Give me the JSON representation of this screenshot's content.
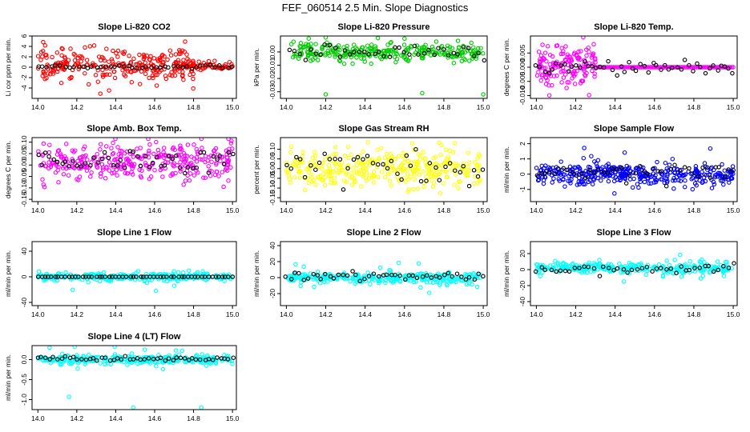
{
  "figure_title": "FEF_060514  2.5 Min. Slope Diagnostics",
  "chart_data": [
    {
      "id": "co2",
      "type": "scatter",
      "title": "Slope Li-820 CO2",
      "ylabel": "Li cor ppm per min.",
      "color": "#ff0000",
      "xlim": [
        13.97,
        15.02
      ],
      "ylim": [
        -6,
        6
      ],
      "xticks": [
        "14.0",
        "14.2",
        "14.4",
        "14.6",
        "14.8",
        "15.0"
      ],
      "yticks": [
        {
          "v": -4,
          "l": "-4"
        },
        {
          "v": -2,
          "l": "-2"
        },
        {
          "v": 0,
          "l": "0"
        },
        {
          "v": 2,
          "l": "2"
        },
        {
          "v": 4,
          "l": "4"
        },
        {
          "v": 6,
          "l": "6"
        }
      ],
      "scatter": {
        "n": 260,
        "x": [
          14.0,
          14.8
        ],
        "center": 0.3,
        "spread": 1.6,
        "tail": 0.9
      },
      "tail_series": {
        "n": 60,
        "x": [
          14.7,
          15.0
        ],
        "center": 0.3,
        "spread": 0.4
      },
      "black": {
        "n": 44,
        "x": [
          14.0,
          15.0
        ],
        "center": 0.1,
        "spread": 0.15
      }
    },
    {
      "id": "pressure",
      "type": "scatter",
      "title": "Slope Li-820 Pressure",
      "ylabel": "kPa per min.",
      "color": "#00cc00",
      "xlim": [
        13.97,
        15.02
      ],
      "ylim": [
        -0.035,
        0.012
      ],
      "xticks": [
        "14.0",
        "14.2",
        "14.4",
        "14.6",
        "14.8",
        "15.0"
      ],
      "yticks": [
        {
          "v": -0.03,
          "l": "-0.03"
        },
        {
          "v": -0.02,
          "l": "-0.02"
        },
        {
          "v": -0.01,
          "l": "-0.01"
        },
        {
          "v": 0,
          "l": "0.00"
        }
      ],
      "scatter": {
        "n": 280,
        "x": [
          14.02,
          15.0
        ],
        "center": 0.0,
        "spread": 0.0035,
        "tail": 0.006
      },
      "outliers": [
        {
          "x": 14.2,
          "y": -0.032
        },
        {
          "x": 14.69,
          "y": -0.031
        },
        {
          "x": 15.0,
          "y": -0.032
        },
        {
          "x": 14.2,
          "y": 0.011
        },
        {
          "x": 14.6,
          "y": 0.01
        }
      ],
      "black": {
        "n": 40,
        "x": [
          14.02,
          15.0
        ],
        "center": 0.0,
        "spread": 0.003
      }
    },
    {
      "id": "temp",
      "type": "scatter",
      "title": "Slope Li-820 Temp.",
      "ylabel": "degrees C per min.",
      "color": "#ff00ff",
      "xlim": [
        13.97,
        15.02
      ],
      "ylim": [
        -0.011,
        0.011
      ],
      "xticks": [
        "14.0",
        "14.2",
        "14.4",
        "14.6",
        "14.8",
        "15.0"
      ],
      "yticks": [
        {
          "v": -0.01,
          "l": "-0.010"
        },
        {
          "v": -0.005,
          "l": "-0.005"
        },
        {
          "v": 0,
          "l": "0.000"
        },
        {
          "v": 0.005,
          "l": "0.005"
        }
      ],
      "scatter": {
        "n": 160,
        "x": [
          14.0,
          14.3
        ],
        "center": 0.001,
        "spread": 0.0038,
        "tail": 0.004
      },
      "tail_series": {
        "n": 100,
        "x": [
          14.3,
          15.0
        ],
        "center": 0.0,
        "spread": 0.0
      },
      "black": {
        "n": 50,
        "x": [
          14.0,
          15.0
        ],
        "center": 0.0,
        "spread": 0.0012
      }
    },
    {
      "id": "ambtemp",
      "type": "scatter",
      "title": "Slope Amb. Box Temp.",
      "ylabel": "degrees C per min.",
      "color": "#ff00ff",
      "xlim": [
        13.97,
        15.02
      ],
      "ylim": [
        -0.16,
        0.12
      ],
      "xticks": [
        "14.0",
        "14.2",
        "14.4",
        "14.6",
        "14.8",
        "15.0"
      ],
      "yticks": [
        {
          "v": -0.15,
          "l": "-0.15"
        },
        {
          "v": -0.1,
          "l": "-0.10"
        },
        {
          "v": -0.05,
          "l": "-0.05"
        },
        {
          "v": 0,
          "l": "0.00"
        },
        {
          "v": 0.05,
          "l": "0.05"
        },
        {
          "v": 0.1,
          "l": "0.10"
        }
      ],
      "scatter": {
        "n": 340,
        "x": [
          14.0,
          15.0
        ],
        "center": 0.01,
        "spread": 0.04,
        "tail": 0.03
      },
      "black": {
        "n": 50,
        "x": [
          14.0,
          15.0
        ],
        "center": 0.01,
        "spread": 0.025
      }
    },
    {
      "id": "rh",
      "type": "scatter",
      "title": "Slope Gas Stream RH",
      "ylabel": "percent per min.",
      "color": "#ffff00",
      "xlim": [
        13.97,
        15.02
      ],
      "ylim": [
        -0.17,
        0.16
      ],
      "xticks": [
        "14.0",
        "14.2",
        "14.4",
        "14.6",
        "14.8",
        "15.0"
      ],
      "yticks": [
        {
          "v": -0.15,
          "l": "-0.15"
        },
        {
          "v": -0.1,
          "l": "-0.10"
        },
        {
          "v": -0.05,
          "l": "-0.05"
        },
        {
          "v": 0,
          "l": "0.00"
        },
        {
          "v": 0.05,
          "l": "0.05"
        },
        {
          "v": 0.1,
          "l": "0.10"
        }
      ],
      "scatter": {
        "n": 340,
        "x": [
          14.0,
          15.0
        ],
        "center": 0.0,
        "spread": 0.05,
        "tail": 0.04
      },
      "black": {
        "n": 42,
        "x": [
          14.0,
          15.0
        ],
        "center": 0.0,
        "spread": 0.05
      }
    },
    {
      "id": "sampleflow",
      "type": "scatter",
      "title": "Slope Sample Flow",
      "ylabel": "ml/min per min.",
      "color": "#0000ff",
      "xlim": [
        13.97,
        15.02
      ],
      "ylim": [
        -1.8,
        2.4
      ],
      "xticks": [
        "14.0",
        "14.2",
        "14.4",
        "14.6",
        "14.8",
        "15.0"
      ],
      "yticks": [
        {
          "v": -1,
          "l": "-1"
        },
        {
          "v": 0,
          "l": "0"
        },
        {
          "v": 1,
          "l": "1"
        },
        {
          "v": 2,
          "l": "2"
        }
      ],
      "scatter": {
        "n": 380,
        "x": [
          14.0,
          15.0
        ],
        "center": 0.0,
        "spread": 0.35,
        "tail": 0.7
      },
      "black": {
        "n": 45,
        "x": [
          14.0,
          15.0
        ],
        "center": 0.1,
        "spread": 0.25
      }
    },
    {
      "id": "line1",
      "type": "scatter",
      "title": "Slope Line 1 Flow",
      "ylabel": "ml/min per min.",
      "color": "#00ffff",
      "xlim": [
        13.97,
        15.02
      ],
      "ylim": [
        -45,
        55
      ],
      "xticks": [
        "14.0",
        "14.2",
        "14.4",
        "14.6",
        "14.8",
        "15.0"
      ],
      "yticks": [
        {
          "v": -40,
          "l": "-40"
        },
        {
          "v": 0,
          "l": "0"
        },
        {
          "v": 40,
          "l": "40"
        }
      ],
      "scatter": {
        "n": 300,
        "x": [
          14.0,
          15.0
        ],
        "center": 0.0,
        "spread": 3.0,
        "tail": 9.0
      },
      "black": {
        "n": 58,
        "x": [
          14.0,
          15.0
        ],
        "center": 0.0,
        "spread": 0.0
      }
    },
    {
      "id": "line2",
      "type": "scatter",
      "title": "Slope Line 2 Flow",
      "ylabel": "ml/min per min.",
      "color": "#00ffff",
      "xlim": [
        13.97,
        15.02
      ],
      "ylim": [
        -35,
        45
      ],
      "xticks": [
        "14.0",
        "14.2",
        "14.4",
        "14.6",
        "14.8",
        "15.0"
      ],
      "yticks": [
        {
          "v": -20,
          "l": "-20"
        },
        {
          "v": 0,
          "l": "0"
        },
        {
          "v": 20,
          "l": "20"
        },
        {
          "v": 40,
          "l": "40"
        }
      ],
      "scatter": {
        "n": 320,
        "x": [
          14.0,
          15.0
        ],
        "center": 0.0,
        "spread": 3.0,
        "tail": 8.0
      },
      "black": {
        "n": 46,
        "x": [
          14.0,
          15.0
        ],
        "center": 2.0,
        "spread": 3.0
      }
    },
    {
      "id": "line3",
      "type": "scatter",
      "title": "Slope Line 3 Flow",
      "ylabel": "ml/min per min.",
      "color": "#00ffff",
      "xlim": [
        13.97,
        15.02
      ],
      "ylim": [
        -45,
        35
      ],
      "xticks": [
        "14.0",
        "14.2",
        "14.4",
        "14.6",
        "14.8",
        "15.0"
      ],
      "yticks": [
        {
          "v": -40,
          "l": "-40"
        },
        {
          "v": -20,
          "l": "-20"
        },
        {
          "v": 0,
          "l": "0"
        },
        {
          "v": 20,
          "l": "20"
        }
      ],
      "scatter": {
        "n": 300,
        "x": [
          14.0,
          15.0
        ],
        "center": 2.0,
        "spread": 3.5,
        "tail": 9.0
      },
      "black": {
        "n": 42,
        "x": [
          14.0,
          15.0
        ],
        "center": 1.0,
        "spread": 3.0
      }
    },
    {
      "id": "line4",
      "type": "scatter",
      "title": "Slope Line 4 (LT) Flow",
      "ylabel": "ml/min per min.",
      "color": "#00ffff",
      "xlim": [
        13.97,
        15.02
      ],
      "ylim": [
        -1.25,
        0.35
      ],
      "xticks": [
        "14.0",
        "14.2",
        "14.4",
        "14.6",
        "14.8",
        "15.0"
      ],
      "yticks": [
        {
          "v": -1,
          "l": "-1.0"
        },
        {
          "v": -0.5,
          "l": "-0.5"
        },
        {
          "v": 0,
          "l": "0.0"
        }
      ],
      "scatter": {
        "n": 320,
        "x": [
          14.0,
          15.0
        ],
        "center": 0.0,
        "spread": 0.05,
        "tail": 0.15
      },
      "outliers": [
        {
          "x": 14.16,
          "y": -0.93
        },
        {
          "x": 14.49,
          "y": -1.2
        },
        {
          "x": 14.84,
          "y": -1.2
        },
        {
          "x": 14.06,
          "y": 0.3
        }
      ],
      "black": {
        "n": 50,
        "x": [
          14.0,
          15.0
        ],
        "center": 0.02,
        "spread": 0.03
      }
    }
  ]
}
